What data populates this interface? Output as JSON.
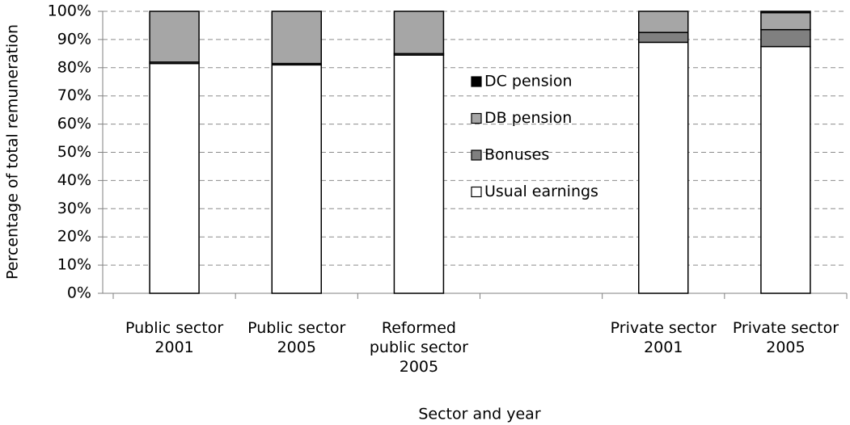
{
  "chart_data": {
    "type": "stacked_bar",
    "categories": [
      [
        "Public sector",
        "2001"
      ],
      [
        "Public sector",
        "2005"
      ],
      [
        "Reformed",
        "public sector",
        "2005"
      ],
      null,
      [
        "Private sector",
        "2001"
      ],
      [
        "Private sector",
        "2005"
      ]
    ],
    "series": [
      {
        "name": "Usual earnings",
        "color": "#ffffff",
        "values": [
          81.5,
          81,
          84.5,
          null,
          89,
          87.5
        ]
      },
      {
        "name": "Bonuses",
        "color": "#808080",
        "values": [
          0.5,
          0.5,
          0.5,
          null,
          3.5,
          6
        ]
      },
      {
        "name": "DB pension",
        "color": "#a6a6a6",
        "values": [
          18,
          18.5,
          15,
          null,
          7.5,
          6
        ]
      },
      {
        "name": "DC pension",
        "color": "#000000",
        "values": [
          0,
          0,
          0,
          null,
          0,
          0.5
        ]
      }
    ],
    "ylim": [
      0,
      100
    ],
    "yticks": [
      {
        "value": 0,
        "label": "0%"
      },
      {
        "value": 10,
        "label": "10%"
      },
      {
        "value": 20,
        "label": "20%"
      },
      {
        "value": 30,
        "label": "30%"
      },
      {
        "value": 40,
        "label": "40%"
      },
      {
        "value": 50,
        "label": "50%"
      },
      {
        "value": 60,
        "label": "60%"
      },
      {
        "value": 70,
        "label": "70%"
      },
      {
        "value": 80,
        "label": "80%"
      },
      {
        "value": 90,
        "label": "90%"
      },
      {
        "value": 100,
        "label": "100%"
      }
    ],
    "ylabel": "Percentage of total remuneration",
    "xlabel": "Sector and year",
    "grid": true
  }
}
